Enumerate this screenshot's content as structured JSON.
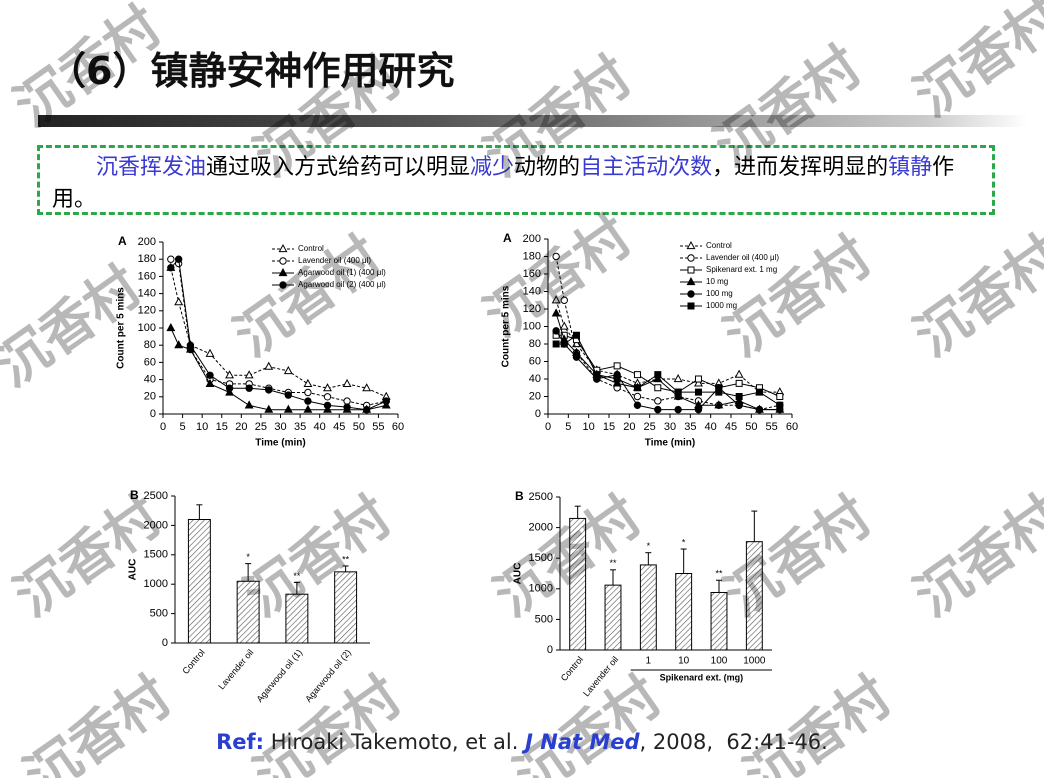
{
  "title": "（6）镇静安神作用研究",
  "intro": [
    {
      "text": "沉香挥发油",
      "highlight": true
    },
    {
      "text": "通过吸入方式给药可以明显",
      "highlight": false
    },
    {
      "text": "减少",
      "highlight": true
    },
    {
      "text": "动物的",
      "highlight": false
    },
    {
      "text": "自主活动次数",
      "highlight": true
    },
    {
      "text": "，进而发挥明显的",
      "highlight": false
    },
    {
      "text": "镇静",
      "highlight": true
    },
    {
      "text": "作用。",
      "highlight": false
    }
  ],
  "ref": [
    {
      "text": "Ref:",
      "style": "label"
    },
    {
      "text": " Hiroaki Takemoto, et al. ",
      "style": "plain"
    },
    {
      "text": "J Nat Med",
      "style": "journal"
    },
    {
      "text": ", 2008,  62:41-46.",
      "style": "plain"
    }
  ],
  "watermark": "沉香村",
  "chart_data": [
    {
      "type": "line",
      "panel": "A",
      "xlabel": "Time (min)",
      "ylabel": "Count per 5 mins",
      "x": [
        2,
        4,
        7,
        12,
        17,
        22,
        27,
        32,
        37,
        42,
        47,
        52,
        57
      ],
      "xlim": [
        0,
        60
      ],
      "ylim": [
        0,
        200
      ],
      "xticks": [
        0,
        5,
        10,
        15,
        20,
        25,
        30,
        35,
        40,
        45,
        50,
        55,
        60
      ],
      "yticks": [
        0,
        20,
        40,
        60,
        80,
        100,
        120,
        140,
        160,
        180,
        200
      ],
      "series": [
        {
          "name": "Control",
          "color": "#000000",
          "marker": "triangle",
          "filled": false,
          "dash": true,
          "values": [
            170,
            130,
            80,
            70,
            45,
            45,
            55,
            50,
            35,
            30,
            35,
            30,
            20
          ]
        },
        {
          "name": "Lavender oil (400 μl)",
          "color": "#000000",
          "marker": "circle",
          "filled": false,
          "dash": true,
          "values": [
            180,
            175,
            75,
            40,
            35,
            35,
            30,
            25,
            25,
            20,
            15,
            10,
            15
          ]
        },
        {
          "name": "Agarwood oil (1) (400 μl)",
          "color": "#000000",
          "marker": "triangle",
          "filled": true,
          "dash": false,
          "values": [
            100,
            80,
            75,
            35,
            25,
            10,
            5,
            5,
            5,
            5,
            5,
            5,
            10
          ]
        },
        {
          "name": "Agarwood oil (2) (400 μl)",
          "color": "#000000",
          "marker": "circle",
          "filled": true,
          "dash": false,
          "values": [
            170,
            180,
            80,
            45,
            30,
            30,
            28,
            22,
            15,
            10,
            8,
            5,
            15
          ]
        }
      ]
    },
    {
      "type": "line",
      "panel": "A",
      "xlabel": "Time (min)",
      "ylabel": "Count per 5 mins",
      "x": [
        2,
        4,
        7,
        12,
        17,
        22,
        27,
        32,
        37,
        42,
        47,
        52,
        57
      ],
      "xlim": [
        0,
        60
      ],
      "ylim": [
        0,
        200
      ],
      "xticks": [
        0,
        5,
        10,
        15,
        20,
        25,
        30,
        35,
        40,
        45,
        50,
        55,
        60
      ],
      "yticks": [
        0,
        20,
        40,
        60,
        80,
        100,
        120,
        140,
        160,
        180,
        200
      ],
      "series": [
        {
          "name": "Control",
          "color": "#000000",
          "marker": "triangle",
          "filled": false,
          "dash": true,
          "values": [
            130,
            100,
            80,
            50,
            45,
            35,
            40,
            40,
            35,
            35,
            45,
            25,
            25
          ]
        },
        {
          "name": "Lavender oil (400 μl)",
          "color": "#000000",
          "marker": "circle",
          "filled": false,
          "dash": true,
          "values": [
            180,
            130,
            70,
            40,
            30,
            20,
            15,
            20,
            15,
            10,
            10,
            5,
            10
          ]
        },
        {
          "name": "Spikenard ext.  1 mg",
          "color": "#000000",
          "marker": "square",
          "filled": false,
          "dash": false,
          "values": [
            90,
            90,
            85,
            50,
            55,
            45,
            30,
            25,
            40,
            30,
            35,
            30,
            20
          ]
        },
        {
          "name": "10 mg",
          "color": "#000000",
          "marker": "triangle",
          "filled": true,
          "dash": false,
          "values": [
            115,
            85,
            70,
            45,
            35,
            30,
            40,
            20,
            10,
            10,
            15,
            5,
            5
          ]
        },
        {
          "name": "100 mg",
          "color": "#000000",
          "marker": "circle",
          "filled": true,
          "dash": false,
          "values": [
            95,
            80,
            65,
            40,
            45,
            10,
            5,
            5,
            5,
            30,
            10,
            5,
            5
          ]
        },
        {
          "name": "1000 mg",
          "color": "#000000",
          "marker": "square",
          "filled": true,
          "dash": false,
          "values": [
            80,
            80,
            90,
            45,
            40,
            30,
            45,
            25,
            25,
            25,
            20,
            25,
            10
          ]
        }
      ]
    },
    {
      "type": "bar",
      "panel": "B",
      "ylabel": "AUC",
      "categories": [
        "Control",
        "Lavender oil",
        "Agarwood oil (1)",
        "Agarwood oil (2)"
      ],
      "values": [
        2100,
        1050,
        830,
        1210
      ],
      "errors": [
        250,
        300,
        200,
        100
      ],
      "annotations": [
        null,
        "*",
        "**",
        "**"
      ],
      "ylim": [
        0,
        2500
      ],
      "yticks": [
        0,
        500,
        1000,
        1500,
        2000,
        2500
      ],
      "hatch": true
    },
    {
      "type": "bar",
      "panel": "B",
      "ylabel": "AUC",
      "group_label": "Spikenard ext. (mg)",
      "categories": [
        "Control",
        "Lavender oil",
        "1",
        "10",
        "100",
        "1000"
      ],
      "values": [
        2150,
        1060,
        1390,
        1250,
        940,
        1770
      ],
      "errors": [
        200,
        250,
        200,
        400,
        200,
        500
      ],
      "annotations": [
        null,
        "**",
        "*",
        "*",
        "**",
        null
      ],
      "ylim": [
        0,
        2500
      ],
      "yticks": [
        0,
        500,
        1000,
        1500,
        2000,
        2500
      ],
      "hatch": true
    }
  ]
}
